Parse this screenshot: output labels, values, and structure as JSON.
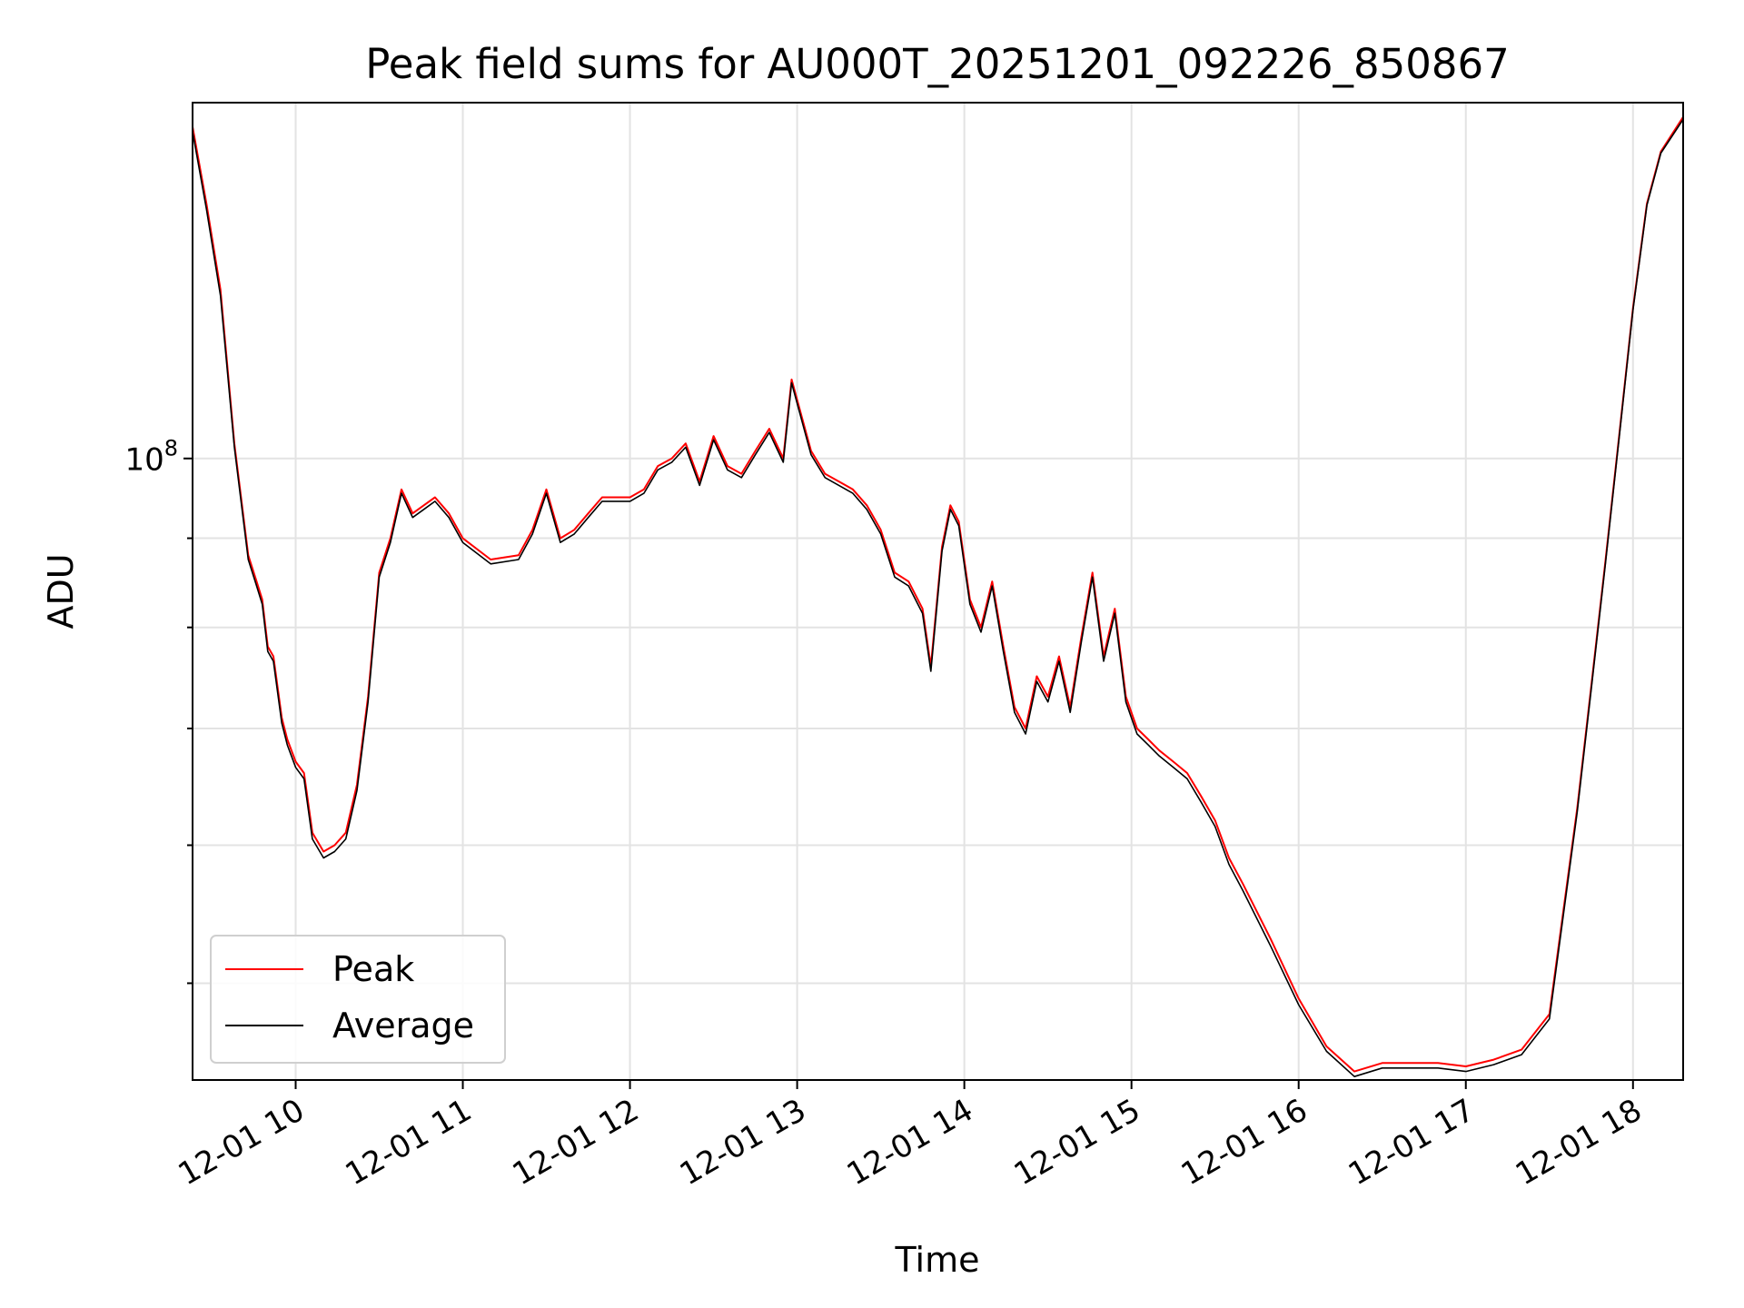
{
  "chart_data": {
    "type": "line",
    "title": "Peak field sums for AU000T_20251201_092226_850867",
    "xlabel": "Time",
    "ylabel": "ADU",
    "yscale": "log",
    "grid": true,
    "legend_position": "lower-left",
    "xlim": [
      "2025-12-01 09:23",
      "2025-12-01 18:18"
    ],
    "ylim": [
      44000000,
      160000000
    ],
    "x_tick_labels": [
      "12-01 10",
      "12-01 11",
      "12-01 12",
      "12-01 13",
      "12-01 14",
      "12-01 15",
      "12-01 16",
      "12-01 17",
      "12-01 18"
    ],
    "y_tick_labels": [
      {
        "base": "10",
        "exponent": "8"
      }
    ],
    "x": [
      "2025-12-01 09:23",
      "2025-12-01 09:28",
      "2025-12-01 09:33",
      "2025-12-01 09:38",
      "2025-12-01 09:43",
      "2025-12-01 09:46",
      "2025-12-01 09:48",
      "2025-12-01 09:50",
      "2025-12-01 09:52",
      "2025-12-01 09:55",
      "2025-12-01 09:57",
      "2025-12-01 10:00",
      "2025-12-01 10:03",
      "2025-12-01 10:06",
      "2025-12-01 10:10",
      "2025-12-01 10:14",
      "2025-12-01 10:18",
      "2025-12-01 10:22",
      "2025-12-01 10:26",
      "2025-12-01 10:30",
      "2025-12-01 10:34",
      "2025-12-01 10:38",
      "2025-12-01 10:42",
      "2025-12-01 10:46",
      "2025-12-01 10:50",
      "2025-12-01 10:55",
      "2025-12-01 11:00",
      "2025-12-01 11:10",
      "2025-12-01 11:20",
      "2025-12-01 11:25",
      "2025-12-01 11:30",
      "2025-12-01 11:35",
      "2025-12-01 11:40",
      "2025-12-01 11:45",
      "2025-12-01 11:50",
      "2025-12-01 12:00",
      "2025-12-01 12:05",
      "2025-12-01 12:10",
      "2025-12-01 12:15",
      "2025-12-01 12:20",
      "2025-12-01 12:25",
      "2025-12-01 12:30",
      "2025-12-01 12:35",
      "2025-12-01 12:40",
      "2025-12-01 12:45",
      "2025-12-01 12:50",
      "2025-12-01 12:55",
      "2025-12-01 12:58",
      "2025-12-01 13:05",
      "2025-12-01 13:10",
      "2025-12-01 13:15",
      "2025-12-01 13:20",
      "2025-12-01 13:25",
      "2025-12-01 13:30",
      "2025-12-01 13:35",
      "2025-12-01 13:40",
      "2025-12-01 13:45",
      "2025-12-01 13:48",
      "2025-12-01 13:52",
      "2025-12-01 13:55",
      "2025-12-01 13:58",
      "2025-12-01 14:02",
      "2025-12-01 14:06",
      "2025-12-01 14:10",
      "2025-12-01 14:14",
      "2025-12-01 14:18",
      "2025-12-01 14:22",
      "2025-12-01 14:26",
      "2025-12-01 14:30",
      "2025-12-01 14:34",
      "2025-12-01 14:38",
      "2025-12-01 14:42",
      "2025-12-01 14:46",
      "2025-12-01 14:50",
      "2025-12-01 14:54",
      "2025-12-01 14:58",
      "2025-12-01 15:02",
      "2025-12-01 15:06",
      "2025-12-01 15:10",
      "2025-12-01 15:15",
      "2025-12-01 15:20",
      "2025-12-01 15:25",
      "2025-12-01 15:30",
      "2025-12-01 15:35",
      "2025-12-01 15:40",
      "2025-12-01 15:50",
      "2025-12-01 16:00",
      "2025-12-01 16:10",
      "2025-12-01 16:20",
      "2025-12-01 16:30",
      "2025-12-01 16:40",
      "2025-12-01 16:50",
      "2025-12-01 17:00",
      "2025-12-01 17:10",
      "2025-12-01 17:20",
      "2025-12-01 17:30",
      "2025-12-01 17:35",
      "2025-12-01 17:40",
      "2025-12-01 17:45",
      "2025-12-01 17:50",
      "2025-12-01 17:55",
      "2025-12-01 18:00",
      "2025-12-01 18:05",
      "2025-12-01 18:10",
      "2025-12-01 18:18"
    ],
    "series": [
      {
        "name": "Peak",
        "color": "#ff0000",
        "values": [
          155000000,
          140000000,
          125000000,
          102000000,
          88000000,
          85000000,
          83000000,
          78000000,
          77000000,
          71000000,
          69000000,
          67000000,
          66000000,
          61000000,
          59500000,
          60000000,
          61000000,
          65000000,
          73000000,
          86000000,
          90000000,
          96000000,
          93000000,
          94000000,
          95000000,
          93000000,
          90000000,
          87500000,
          88000000,
          91000000,
          96000000,
          90000000,
          91000000,
          93000000,
          95000000,
          95000000,
          96000000,
          99000000,
          100000000,
          102000000,
          97000000,
          103000000,
          99000000,
          98000000,
          101000000,
          104000000,
          100000000,
          111000000,
          101000000,
          98000000,
          97000000,
          96000000,
          94000000,
          91000000,
          86000000,
          85000000,
          82000000,
          76000000,
          89000000,
          94000000,
          92000000,
          83000000,
          80000000,
          85000000,
          78000000,
          72000000,
          70000000,
          75000000,
          73000000,
          77000000,
          72000000,
          79000000,
          86000000,
          77000000,
          82000000,
          73000000,
          70000000,
          69000000,
          68000000,
          67000000,
          66000000,
          64000000,
          62000000,
          59000000,
          57000000,
          53000000,
          49000000,
          46000000,
          44500000,
          45000000,
          45000000,
          45000000,
          44800000,
          45200000,
          45800000,
          48000000,
          55000000,
          63000000,
          74000000,
          87000000,
          103000000,
          122000000,
          140000000,
          150000000,
          157000000
        ]
      },
      {
        "name": "Average",
        "color": "#000000",
        "values": [
          154000000,
          139000000,
          124000000,
          101500000,
          87500000,
          84500000,
          82500000,
          77500000,
          76500000,
          70500000,
          68500000,
          66500000,
          65500000,
          60500000,
          59000000,
          59500000,
          60500000,
          64500000,
          72500000,
          85500000,
          89500000,
          95500000,
          92500000,
          93500000,
          94500000,
          92500000,
          89500000,
          87000000,
          87500000,
          90500000,
          95500000,
          89500000,
          90500000,
          92500000,
          94500000,
          94500000,
          95500000,
          98500000,
          99500000,
          101500000,
          96500000,
          102500000,
          98500000,
          97500000,
          100500000,
          103500000,
          99500000,
          110500000,
          100500000,
          97500000,
          96500000,
          95500000,
          93500000,
          90500000,
          85500000,
          84500000,
          81500000,
          75500000,
          88500000,
          93500000,
          91500000,
          82500000,
          79500000,
          84500000,
          77500000,
          71500000,
          69500000,
          74500000,
          72500000,
          76500000,
          71500000,
          78500000,
          85500000,
          76500000,
          81500000,
          72500000,
          69500000,
          68500000,
          67500000,
          66500000,
          65500000,
          63500000,
          61500000,
          58500000,
          56500000,
          52500000,
          48600000,
          45700000,
          44200000,
          44700000,
          44700000,
          44700000,
          44500000,
          44900000,
          45500000,
          47700000,
          54700000,
          62700000,
          73700000,
          86700000,
          102700000,
          121700000,
          139700000,
          149700000,
          156500000
        ]
      }
    ]
  }
}
